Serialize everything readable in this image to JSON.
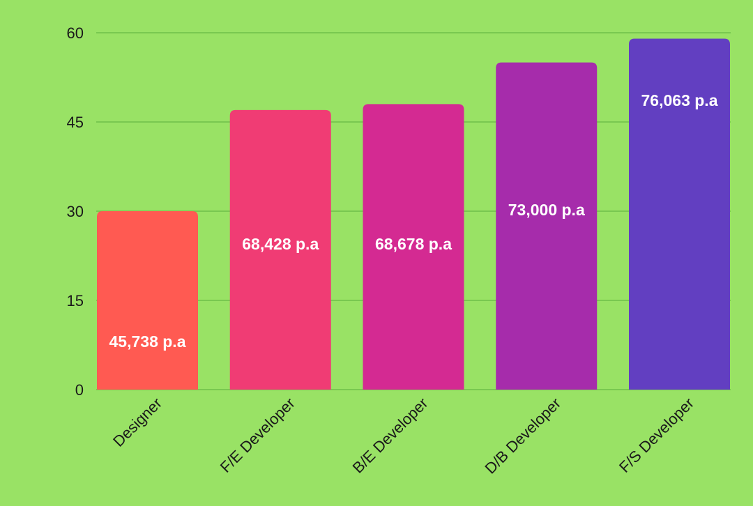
{
  "chart_data": {
    "type": "bar",
    "categories": [
      "Designer",
      "F/E Developer",
      "B/E Developer",
      "D/B Developer",
      "F/S Developer"
    ],
    "values": [
      30,
      47,
      48,
      55,
      59
    ],
    "data_labels": [
      "45,738 p.a",
      "68,428 p.a",
      "68,678 p.a",
      "73,000 p.a",
      "76,063 p.a"
    ],
    "colors": [
      "#ff5a52",
      "#f03c74",
      "#d42a92",
      "#a62cab",
      "#623fc1"
    ],
    "yticks": [
      0,
      15,
      30,
      45,
      60
    ],
    "ylim": [
      0,
      60
    ],
    "grid": true,
    "background": "#99e265",
    "title": "",
    "xlabel": "",
    "ylabel": ""
  }
}
